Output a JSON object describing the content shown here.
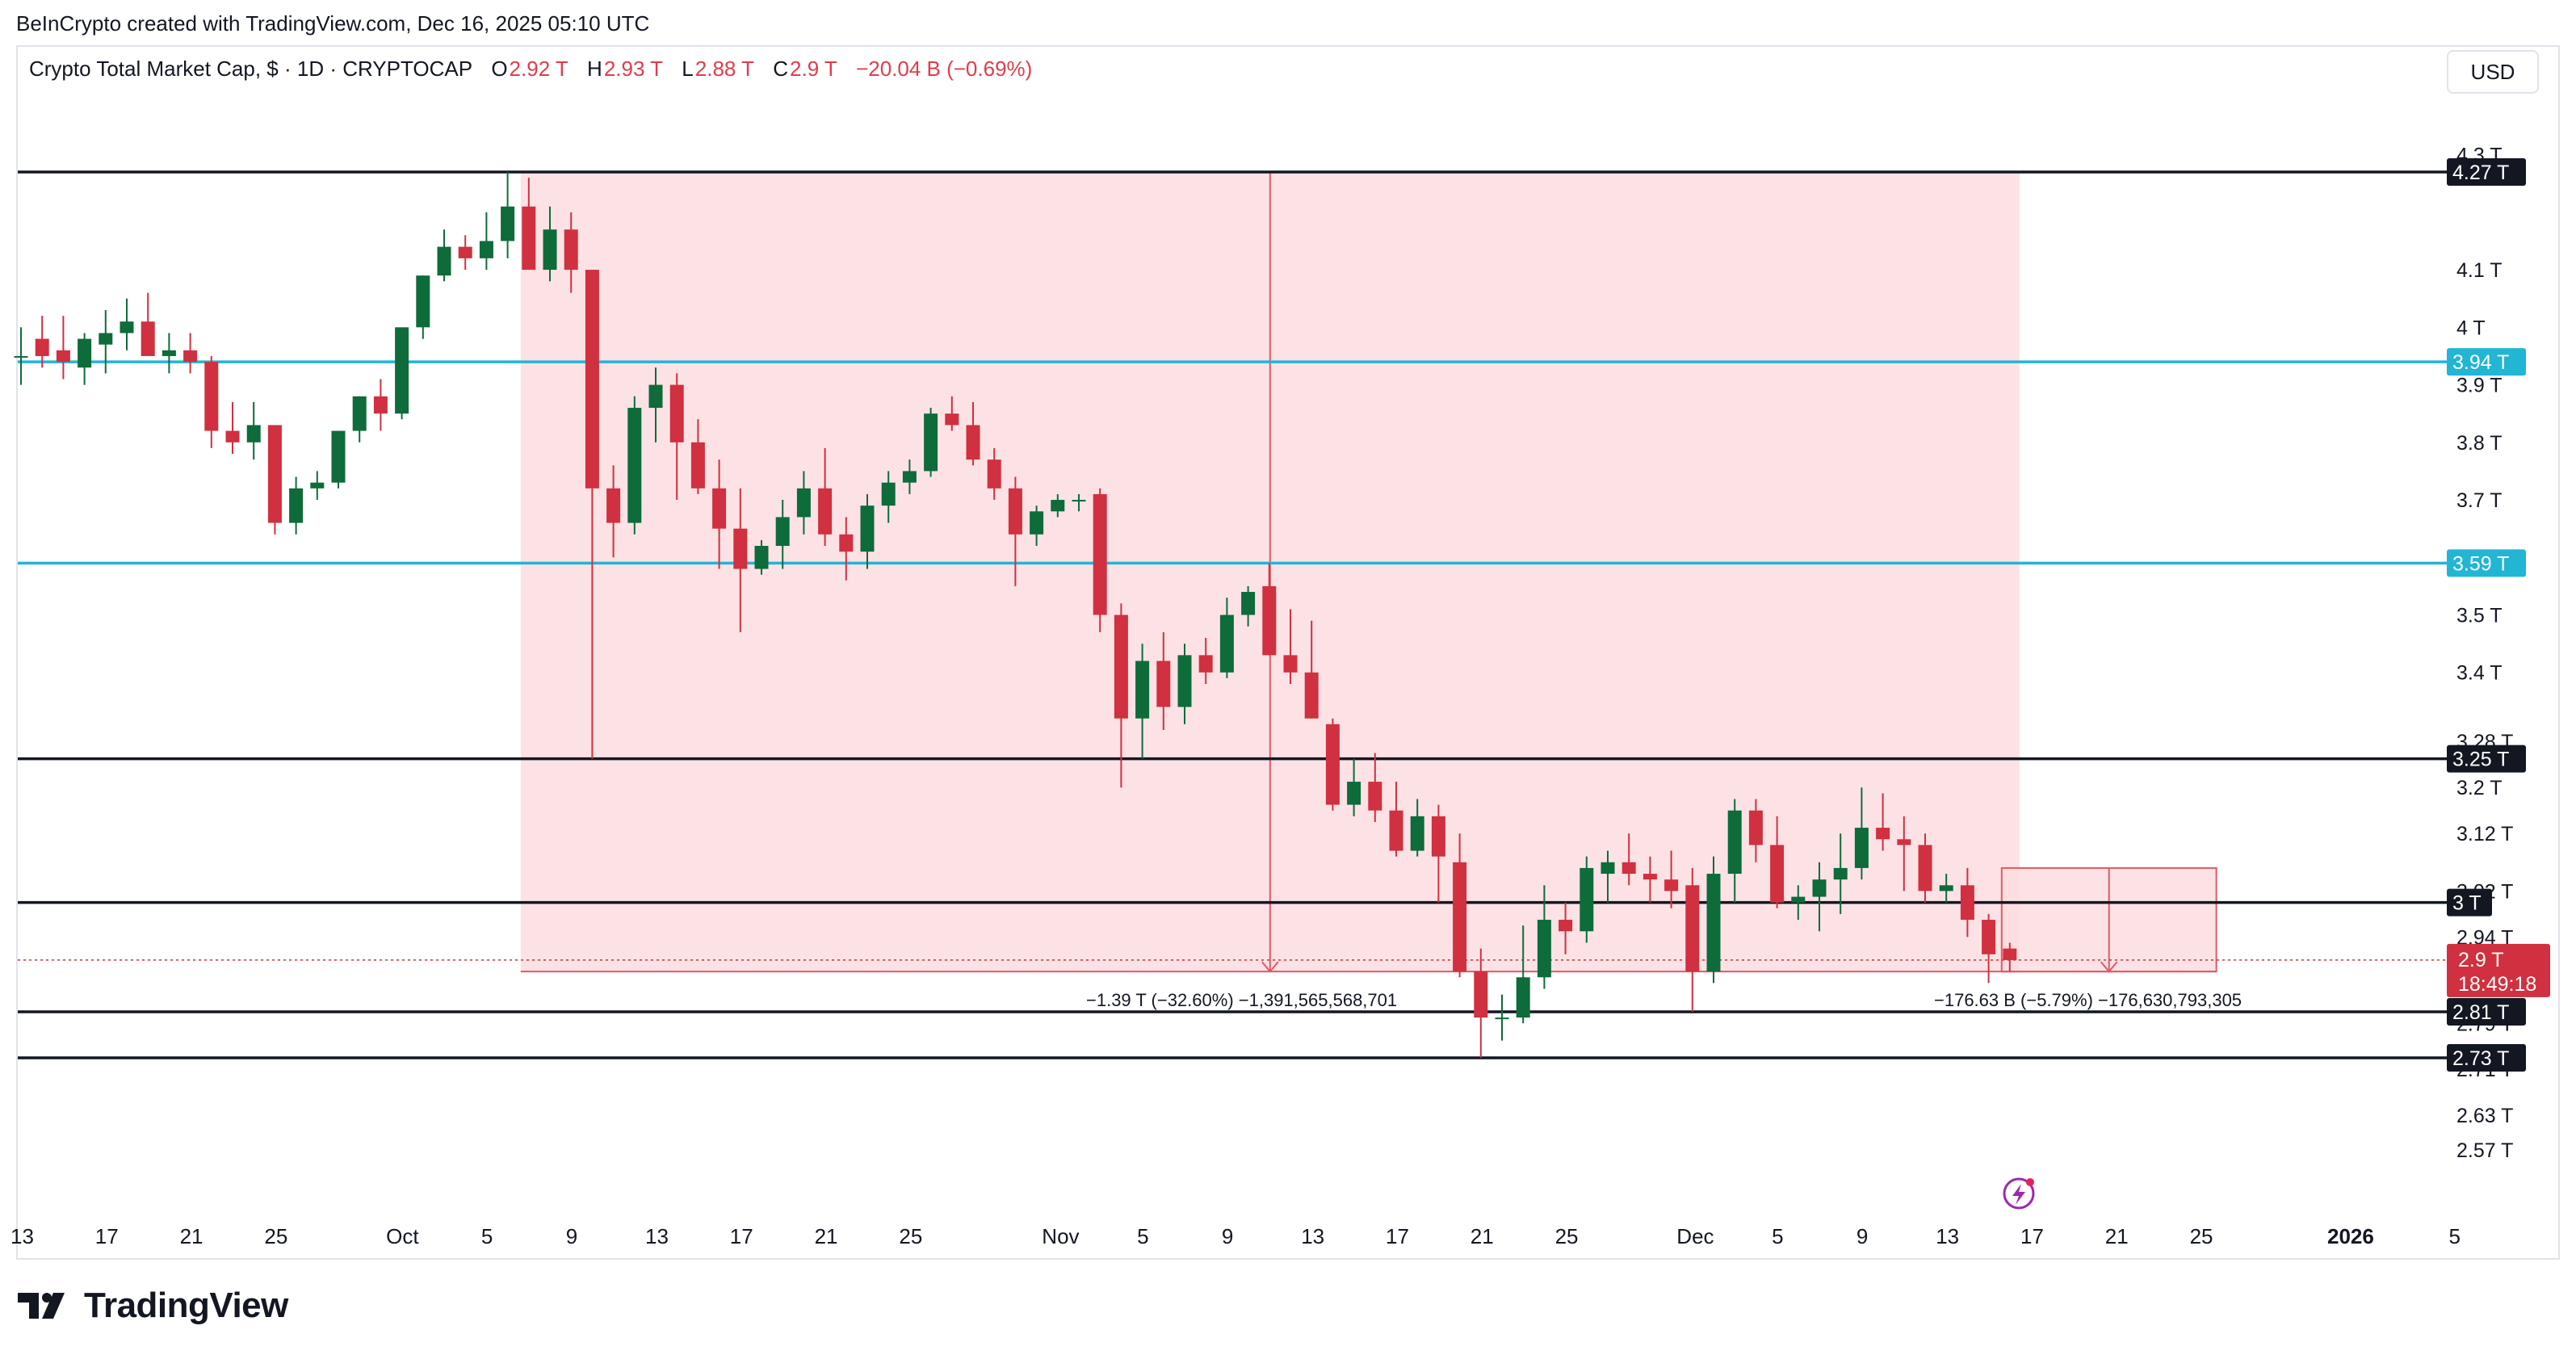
{
  "credit": "BeInCrypto created with TradingView.com, Dec 16, 2025 05:10 UTC",
  "legend": {
    "symbol": "Crypto Total Market Cap, $ · 1D · CRYPTOCAP",
    "o_label": "O",
    "o_value": "2.92 T",
    "h_label": "H",
    "h_value": "2.93 T",
    "l_label": "L",
    "l_value": "2.88 T",
    "c_label": "C",
    "c_value": "2.9 T",
    "change": "−20.04 B (−0.69%)"
  },
  "currency_button": "USD",
  "brand": "TradingView",
  "colors": {
    "up": "#0e6b3a",
    "down": "#d0303f",
    "level_black": "#131722",
    "level_cyan": "#22b5d4",
    "range_fill": "#fcdde0",
    "measure_line": "#e05a66"
  },
  "chart_data": {
    "type": "candlestick",
    "ylim": [
      2.52,
      4.33
    ],
    "y_ticks": [
      {
        "v": 4.3,
        "label": "4.3 T"
      },
      {
        "v": 4.1,
        "label": "4.1 T"
      },
      {
        "v": 4.0,
        "label": "4 T"
      },
      {
        "v": 3.9,
        "label": "3.9 T"
      },
      {
        "v": 3.8,
        "label": "3.8 T"
      },
      {
        "v": 3.7,
        "label": "3.7 T"
      },
      {
        "v": 3.6,
        "label": "3.6 T"
      },
      {
        "v": 3.5,
        "label": "3.5 T"
      },
      {
        "v": 3.4,
        "label": "3.4 T"
      },
      {
        "v": 3.28,
        "label": "3.28 T"
      },
      {
        "v": 3.2,
        "label": "3.2 T"
      },
      {
        "v": 3.12,
        "label": "3.12 T"
      },
      {
        "v": 3.02,
        "label": "3.02 T"
      },
      {
        "v": 2.94,
        "label": "2.94 T"
      },
      {
        "v": 2.79,
        "label": "2.79 T"
      },
      {
        "v": 2.71,
        "label": "2.71 T"
      },
      {
        "v": 2.63,
        "label": "2.63 T"
      },
      {
        "v": 2.57,
        "label": "2.57 T"
      }
    ],
    "x_ticks": [
      {
        "i": 0,
        "label": "13"
      },
      {
        "i": 4,
        "label": "17"
      },
      {
        "i": 8,
        "label": "21"
      },
      {
        "i": 12,
        "label": "25"
      },
      {
        "i": 18,
        "label": "Oct"
      },
      {
        "i": 22,
        "label": "5"
      },
      {
        "i": 26,
        "label": "9"
      },
      {
        "i": 30,
        "label": "13"
      },
      {
        "i": 34,
        "label": "17"
      },
      {
        "i": 38,
        "label": "21"
      },
      {
        "i": 42,
        "label": "25"
      },
      {
        "i": 49,
        "label": "Nov"
      },
      {
        "i": 53,
        "label": "5"
      },
      {
        "i": 57,
        "label": "9"
      },
      {
        "i": 61,
        "label": "13"
      },
      {
        "i": 65,
        "label": "17"
      },
      {
        "i": 69,
        "label": "21"
      },
      {
        "i": 73,
        "label": "25"
      },
      {
        "i": 79,
        "label": "Dec"
      },
      {
        "i": 83,
        "label": "5"
      },
      {
        "i": 87,
        "label": "9"
      },
      {
        "i": 91,
        "label": "13"
      },
      {
        "i": 95,
        "label": "17"
      },
      {
        "i": 99,
        "label": "21"
      },
      {
        "i": 103,
        "label": "25"
      },
      {
        "i": 110,
        "label": "2026"
      },
      {
        "i": 115,
        "label": "5"
      }
    ],
    "candles": [
      {
        "o": 3.95,
        "h": 4.0,
        "l": 3.9,
        "c": 3.95
      },
      {
        "o": 3.98,
        "h": 4.02,
        "l": 3.93,
        "c": 3.95
      },
      {
        "o": 3.96,
        "h": 4.02,
        "l": 3.91,
        "c": 3.94
      },
      {
        "o": 3.93,
        "h": 3.99,
        "l": 3.9,
        "c": 3.98
      },
      {
        "o": 3.97,
        "h": 4.03,
        "l": 3.92,
        "c": 3.99
      },
      {
        "o": 3.99,
        "h": 4.05,
        "l": 3.96,
        "c": 4.01
      },
      {
        "o": 4.01,
        "h": 4.06,
        "l": 3.96,
        "c": 3.95
      },
      {
        "o": 3.95,
        "h": 3.99,
        "l": 3.92,
        "c": 3.96
      },
      {
        "o": 3.96,
        "h": 3.99,
        "l": 3.92,
        "c": 3.94
      },
      {
        "o": 3.94,
        "h": 3.95,
        "l": 3.79,
        "c": 3.82
      },
      {
        "o": 3.82,
        "h": 3.87,
        "l": 3.78,
        "c": 3.8
      },
      {
        "o": 3.8,
        "h": 3.87,
        "l": 3.77,
        "c": 3.83
      },
      {
        "o": 3.83,
        "h": 3.83,
        "l": 3.64,
        "c": 3.66
      },
      {
        "o": 3.66,
        "h": 3.74,
        "l": 3.64,
        "c": 3.72
      },
      {
        "o": 3.72,
        "h": 3.75,
        "l": 3.7,
        "c": 3.73
      },
      {
        "o": 3.73,
        "h": 3.82,
        "l": 3.72,
        "c": 3.82
      },
      {
        "o": 3.82,
        "h": 3.88,
        "l": 3.8,
        "c": 3.88
      },
      {
        "o": 3.88,
        "h": 3.91,
        "l": 3.82,
        "c": 3.85
      },
      {
        "o": 3.85,
        "h": 4.0,
        "l": 3.84,
        "c": 4.0
      },
      {
        "o": 4.0,
        "h": 4.09,
        "l": 3.98,
        "c": 4.09
      },
      {
        "o": 4.09,
        "h": 4.17,
        "l": 4.08,
        "c": 4.14
      },
      {
        "o": 4.14,
        "h": 4.16,
        "l": 4.1,
        "c": 4.12
      },
      {
        "o": 4.12,
        "h": 4.2,
        "l": 4.1,
        "c": 4.15
      },
      {
        "o": 4.15,
        "h": 4.27,
        "l": 4.12,
        "c": 4.21
      },
      {
        "o": 4.21,
        "h": 4.26,
        "l": 4.1,
        "c": 4.1
      },
      {
        "o": 4.1,
        "h": 4.21,
        "l": 4.08,
        "c": 4.17
      },
      {
        "o": 4.17,
        "h": 4.2,
        "l": 4.06,
        "c": 4.1
      },
      {
        "o": 4.1,
        "h": 4.1,
        "l": 3.25,
        "c": 3.72
      },
      {
        "o": 3.72,
        "h": 3.76,
        "l": 3.6,
        "c": 3.66
      },
      {
        "o": 3.66,
        "h": 3.88,
        "l": 3.64,
        "c": 3.86
      },
      {
        "o": 3.86,
        "h": 3.93,
        "l": 3.8,
        "c": 3.9
      },
      {
        "o": 3.9,
        "h": 3.92,
        "l": 3.7,
        "c": 3.8
      },
      {
        "o": 3.8,
        "h": 3.84,
        "l": 3.71,
        "c": 3.72
      },
      {
        "o": 3.72,
        "h": 3.77,
        "l": 3.58,
        "c": 3.65
      },
      {
        "o": 3.65,
        "h": 3.72,
        "l": 3.47,
        "c": 3.58
      },
      {
        "o": 3.58,
        "h": 3.63,
        "l": 3.57,
        "c": 3.62
      },
      {
        "o": 3.62,
        "h": 3.7,
        "l": 3.58,
        "c": 3.67
      },
      {
        "o": 3.67,
        "h": 3.75,
        "l": 3.64,
        "c": 3.72
      },
      {
        "o": 3.72,
        "h": 3.79,
        "l": 3.62,
        "c": 3.64
      },
      {
        "o": 3.64,
        "h": 3.67,
        "l": 3.56,
        "c": 3.61
      },
      {
        "o": 3.61,
        "h": 3.71,
        "l": 3.58,
        "c": 3.69
      },
      {
        "o": 3.69,
        "h": 3.75,
        "l": 3.66,
        "c": 3.73
      },
      {
        "o": 3.73,
        "h": 3.77,
        "l": 3.71,
        "c": 3.75
      },
      {
        "o": 3.75,
        "h": 3.86,
        "l": 3.74,
        "c": 3.85
      },
      {
        "o": 3.85,
        "h": 3.88,
        "l": 3.82,
        "c": 3.83
      },
      {
        "o": 3.83,
        "h": 3.87,
        "l": 3.76,
        "c": 3.77
      },
      {
        "o": 3.77,
        "h": 3.79,
        "l": 3.7,
        "c": 3.72
      },
      {
        "o": 3.72,
        "h": 3.74,
        "l": 3.55,
        "c": 3.64
      },
      {
        "o": 3.64,
        "h": 3.69,
        "l": 3.62,
        "c": 3.68
      },
      {
        "o": 3.68,
        "h": 3.71,
        "l": 3.67,
        "c": 3.7
      },
      {
        "o": 3.7,
        "h": 3.71,
        "l": 3.68,
        "c": 3.7
      },
      {
        "o": 3.71,
        "h": 3.72,
        "l": 3.47,
        "c": 3.5
      },
      {
        "o": 3.5,
        "h": 3.52,
        "l": 3.2,
        "c": 3.32
      },
      {
        "o": 3.32,
        "h": 3.45,
        "l": 3.25,
        "c": 3.42
      },
      {
        "o": 3.42,
        "h": 3.47,
        "l": 3.3,
        "c": 3.34
      },
      {
        "o": 3.34,
        "h": 3.45,
        "l": 3.31,
        "c": 3.43
      },
      {
        "o": 3.43,
        "h": 3.46,
        "l": 3.38,
        "c": 3.4
      },
      {
        "o": 3.4,
        "h": 3.53,
        "l": 3.39,
        "c": 3.5
      },
      {
        "o": 3.5,
        "h": 3.55,
        "l": 3.48,
        "c": 3.54
      },
      {
        "o": 3.55,
        "h": 3.59,
        "l": 3.43,
        "c": 3.43
      },
      {
        "o": 3.43,
        "h": 3.51,
        "l": 3.38,
        "c": 3.4
      },
      {
        "o": 3.4,
        "h": 3.49,
        "l": 3.32,
        "c": 3.32
      },
      {
        "o": 3.31,
        "h": 3.32,
        "l": 3.16,
        "c": 3.17
      },
      {
        "o": 3.17,
        "h": 3.25,
        "l": 3.15,
        "c": 3.21
      },
      {
        "o": 3.21,
        "h": 3.26,
        "l": 3.14,
        "c": 3.16
      },
      {
        "o": 3.16,
        "h": 3.21,
        "l": 3.08,
        "c": 3.09
      },
      {
        "o": 3.09,
        "h": 3.18,
        "l": 3.08,
        "c": 3.15
      },
      {
        "o": 3.15,
        "h": 3.17,
        "l": 3.0,
        "c": 3.08
      },
      {
        "o": 3.07,
        "h": 3.12,
        "l": 2.87,
        "c": 2.88
      },
      {
        "o": 2.88,
        "h": 2.92,
        "l": 2.73,
        "c": 2.8
      },
      {
        "o": 2.8,
        "h": 2.84,
        "l": 2.76,
        "c": 2.8
      },
      {
        "o": 2.8,
        "h": 2.96,
        "l": 2.79,
        "c": 2.87
      },
      {
        "o": 2.87,
        "h": 3.03,
        "l": 2.85,
        "c": 2.97
      },
      {
        "o": 2.97,
        "h": 3.0,
        "l": 2.91,
        "c": 2.95
      },
      {
        "o": 2.95,
        "h": 3.08,
        "l": 2.93,
        "c": 3.06
      },
      {
        "o": 3.05,
        "h": 3.09,
        "l": 3.0,
        "c": 3.07
      },
      {
        "o": 3.07,
        "h": 3.12,
        "l": 3.03,
        "c": 3.05
      },
      {
        "o": 3.05,
        "h": 3.08,
        "l": 3.0,
        "c": 3.04
      },
      {
        "o": 3.04,
        "h": 3.09,
        "l": 2.99,
        "c": 3.02
      },
      {
        "o": 3.03,
        "h": 3.06,
        "l": 2.81,
        "c": 2.88
      },
      {
        "o": 2.88,
        "h": 3.08,
        "l": 2.86,
        "c": 3.05
      },
      {
        "o": 3.05,
        "h": 3.18,
        "l": 3.0,
        "c": 3.16
      },
      {
        "o": 3.16,
        "h": 3.18,
        "l": 3.07,
        "c": 3.1
      },
      {
        "o": 3.1,
        "h": 3.15,
        "l": 2.99,
        "c": 3.0
      },
      {
        "o": 3.0,
        "h": 3.03,
        "l": 2.97,
        "c": 3.01
      },
      {
        "o": 3.01,
        "h": 3.07,
        "l": 2.95,
        "c": 3.04
      },
      {
        "o": 3.04,
        "h": 3.12,
        "l": 2.98,
        "c": 3.06
      },
      {
        "o": 3.06,
        "h": 3.2,
        "l": 3.04,
        "c": 3.13
      },
      {
        "o": 3.13,
        "h": 3.19,
        "l": 3.09,
        "c": 3.11
      },
      {
        "o": 3.11,
        "h": 3.15,
        "l": 3.02,
        "c": 3.1
      },
      {
        "o": 3.1,
        "h": 3.12,
        "l": 3.0,
        "c": 3.02
      },
      {
        "o": 3.02,
        "h": 3.05,
        "l": 3.0,
        "c": 3.03
      },
      {
        "o": 3.03,
        "h": 3.06,
        "l": 2.94,
        "c": 2.97
      },
      {
        "o": 2.97,
        "h": 2.98,
        "l": 2.86,
        "c": 2.91
      },
      {
        "o": 2.92,
        "h": 2.93,
        "l": 2.88,
        "c": 2.9
      }
    ],
    "levels": [
      {
        "v": 4.27,
        "label": "4.27 T",
        "color": "black"
      },
      {
        "v": 3.94,
        "label": "3.94 T",
        "color": "cyan"
      },
      {
        "v": 3.59,
        "label": "3.59 T",
        "color": "cyan"
      },
      {
        "v": 3.25,
        "label": "3.25 T",
        "color": "black"
      },
      {
        "v": 3.0,
        "label": "3 T",
        "color": "black"
      },
      {
        "v": 2.81,
        "label": "2.81 T",
        "color": "black"
      },
      {
        "v": 2.73,
        "label": "2.73 T",
        "color": "black"
      }
    ],
    "measurements": [
      {
        "from_i": 24,
        "to_i": 94,
        "top": 4.27,
        "bottom": 2.88,
        "label": "−1.39 T (−32.60%) −1,391,565,568,701"
      },
      {
        "from_i": 94,
        "to_i": 103,
        "top": 3.06,
        "bottom": 2.88,
        "label": "−176.63 B (−5.79%) −176,630,793,305"
      }
    ],
    "last_price": {
      "value": 2.9,
      "label": "2.9 T",
      "countdown": "18:49:18"
    }
  }
}
